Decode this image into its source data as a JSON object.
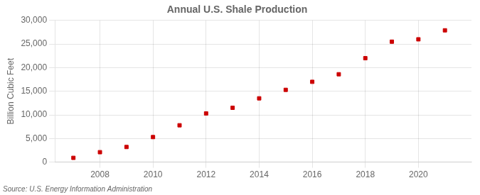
{
  "chart_data": {
    "type": "scatter",
    "title": "Annual U.S. Shale Production",
    "ylabel": "Billion Cubic Feet",
    "annotation": "Source: U.S. Energy Information Administration",
    "x": [
      2007,
      2008,
      2009,
      2010,
      2011,
      2012,
      2013,
      2014,
      2015,
      2016,
      2017,
      2018,
      2019,
      2020,
      2021
    ],
    "values": [
      900,
      2100,
      3200,
      5300,
      7800,
      10300,
      11500,
      13500,
      15300,
      17000,
      18600,
      22000,
      25500,
      26000,
      27900
    ],
    "color": "#cc0000",
    "marker": "square",
    "xlim": [
      2006.3,
      2022.0
    ],
    "xticks": [
      2008,
      2010,
      2012,
      2014,
      2016,
      2018,
      2020
    ],
    "ylim": [
      0,
      30000
    ],
    "yticks": [
      0,
      {
        "value": 5000,
        "label": "5,000"
      },
      {
        "value": 10000,
        "label": "10,000"
      },
      {
        "value": 15000,
        "label": "15,000"
      },
      {
        "value": 20000,
        "label": "20,000"
      },
      {
        "value": 25000,
        "label": "25,000"
      },
      {
        "value": 30000,
        "label": "30,000"
      }
    ],
    "grid": true
  }
}
